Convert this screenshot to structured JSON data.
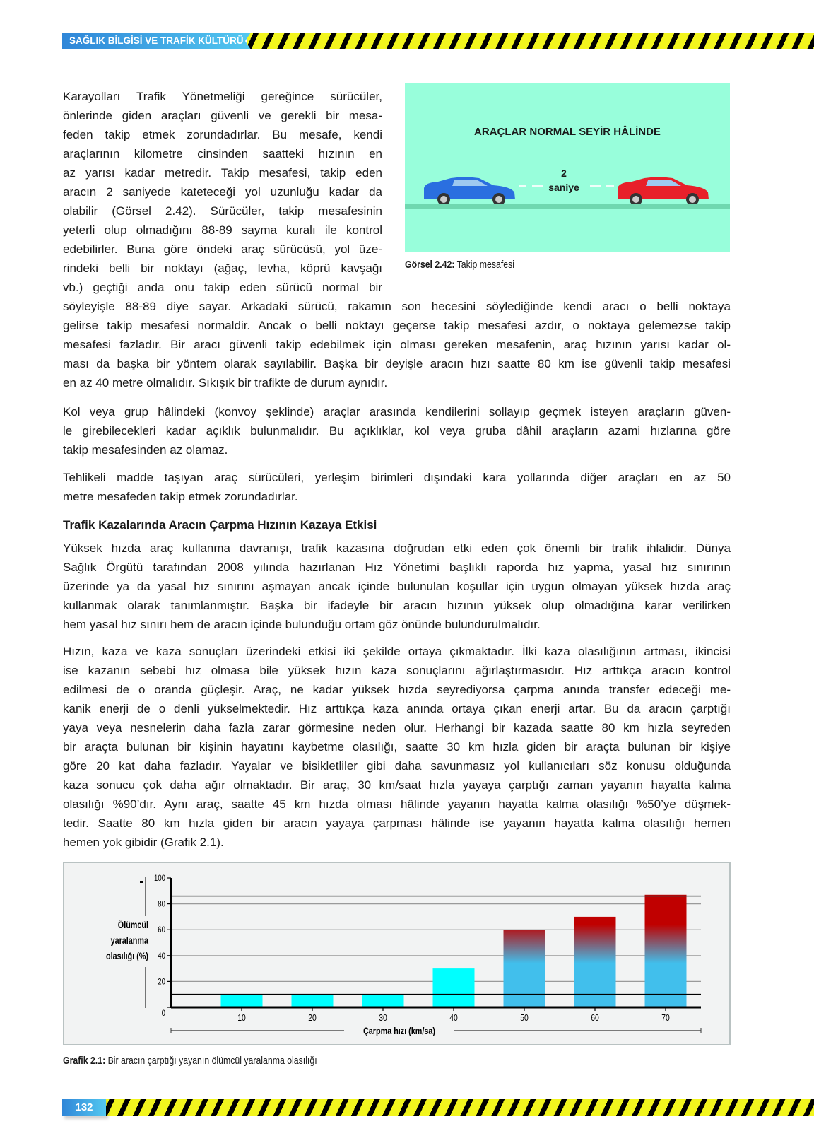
{
  "header": {
    "title": "SAĞLIK BİLGİSİ VE TRAFİK KÜLTÜRÜ"
  },
  "figure": {
    "title": "ARAÇLAR NORMAL SEYİR HÂLİNDE",
    "gap_number": "2",
    "gap_unit": "saniye",
    "caption_label": "Görsel 2.42:",
    "caption_text": " Takip mesafesi",
    "colors": {
      "background": "#98fedb",
      "rear_car": "#2a6fe0",
      "front_car": "#e8202a"
    }
  },
  "paragraphs": [
    {
      "lines": [
        "Karayolları Trafik Yönetmeliği gereğince sürücüler,",
        "önlerinde giden araçları güvenli ve gerekli bir mesa-",
        "feden takip etmek zorundadırlar. Bu mesafe, kendi",
        "araçlarının kilometre cinsinden saatteki hızının en",
        "az yarısı kadar metredir. Takip mesafesi, takip eden",
        "aracın 2 saniyede kateteceği yol uzunluğu kadar da",
        "olabilir (Görsel 2.42). Sürücüler, takip mesafesinin",
        "yeterli olup olmadığını 88-89 sayma kuralı ile kontrol",
        "edebilirler. Buna göre öndeki araç sürücüsü, yol üze-",
        "rindeki belli bir noktayı (ağaç, levha, köprü kavşağı",
        "vb.) geçtiği anda onu takip eden sürücü normal bir",
        "söyleyişle 88-89 diye sayar. Arkadaki sürücü, rakamın son hecesini söylediğinde kendi aracı o belli noktaya",
        "gelirse takip mesafesi normaldir. Ancak o belli noktayı geçerse takip mesafesi azdır, o noktaya gelemezse takip",
        "mesafesi fazladır. Bir aracı güvenli takip edebilmek için olması gereken mesafenin, araç hızının yarısı kadar ol-",
        "ması da başka bir yöntem olarak sayılabilir. Başka bir deyişle aracın hızı saatte 80 km ise güvenli takip mesafesi",
        "en az 40 metre olmalıdır. Sıkışık bir trafikte de durum aynıdır."
      ]
    },
    {
      "lines": [
        "Kol veya grup hâlindeki (konvoy şeklinde) araçlar arasında kendilerini sollayıp geçmek isteyen araçların güven-",
        "le girebilecekleri kadar açıklık bulunmalıdır. Bu açıklıklar, kol veya gruba dâhil araçların azami hızlarına göre",
        "takip mesafesinden az olamaz."
      ]
    },
    {
      "lines": [
        "Tehlikeli madde taşıyan araç sürücüleri, yerleşim birimleri dışındaki kara yollarında diğer araçları en az 50",
        "metre mesafeden takip etmek zorundadırlar."
      ]
    },
    {
      "lines": [
        "Yüksek hızda araç kullanma davranışı, trafik kazasına doğrudan etki eden çok önemli bir trafik ihlalidir. Dünya",
        "Sağlık Örgütü tarafından 2008 yılında hazırlanan Hız Yönetimi başlıklı raporda hız yapma, yasal hız sınırının",
        "üzerinde ya da yasal hız sınırını aşmayan ancak içinde bulunulan koşullar için uygun olmayan yüksek hızda araç",
        "kullanmak olarak tanımlanmıştır. Başka bir ifadeyle bir aracın hızının yüksek olup olmadığına karar verilirken",
        "hem yasal hız sınırı hem de aracın içinde bulunduğu ortam göz önünde bulundurulmalıdır."
      ]
    },
    {
      "lines": [
        "Hızın, kaza ve kaza sonuçları üzerindeki etkisi iki şekilde ortaya çıkmaktadır. İlki kaza olasılığının artması, ikincisi",
        "ise kazanın sebebi hız olmasa bile yüksek hızın kaza sonuçlarını ağırlaştırmasıdır. Hız arttıkça aracın kontrol",
        "edilmesi de o oranda güçleşir. Araç, ne kadar yüksek hızda seyrediyorsa çarpma anında transfer edeceği me-",
        "kanik enerji de o denli yükselmektedir. Hız arttıkça kaza anında ortaya çıkan enerji artar. Bu da aracın çarptığı",
        "yaya veya nesnelerin daha fazla zarar görmesine neden olur. Herhangi bir kazada saatte 80 km hızla seyreden",
        "bir araçta bulunan bir kişinin hayatını kaybetme olasılığı, saatte 30 km hızla giden bir araçta bulunan bir kişiye",
        "göre 20 kat daha fazladır. Yayalar ve bisikletliler gibi daha savunmasız yol kullanıcıları söz konusu olduğunda",
        "kaza sonucu çok daha ağır olmaktadır. Bir araç, 30 km/saat hızla yayaya çarptığı zaman yayanın hayatta kalma",
        "olasılığı %90’dır. Aynı araç, saatte 45 km hızda olması hâlinde yayanın hayatta kalma olasılığı %50’ye düşmek-",
        "tedir. Saatte 80 km hızla giden bir aracın yayaya çarpması hâlinde ise yayanın hayatta kalma olasılığı hemen",
        "hemen yok gibidir (Grafik 2.1)."
      ]
    }
  ],
  "section_heading": "Trafik Kazalarında Aracın Çarpma Hızının Kazaya Etkisi",
  "chart_data": {
    "type": "bar",
    "categories": [
      "10",
      "20",
      "30",
      "40",
      "50",
      "60",
      "70"
    ],
    "x": [
      10,
      20,
      30,
      40,
      50,
      60,
      70
    ],
    "values": [
      10,
      10,
      10,
      30,
      60,
      70,
      87
    ],
    "xlabel": "Çarpma hızı (km/sa)",
    "ylabel_lines": [
      "Ölümcül",
      "yaralanma",
      "olasılığı (%)"
    ],
    "yticks": [
      0,
      20,
      40,
      60,
      80,
      100
    ],
    "xlim": [
      0,
      75
    ],
    "ylim": [
      0,
      100
    ],
    "reference_lines": [
      10,
      86
    ],
    "grid": true,
    "colors": {
      "low": "#00ffff",
      "high_top": "#c00000",
      "high_bottom": "#41bfec",
      "background": "#f2f3f3"
    }
  },
  "chart_caption": {
    "label": "Grafik 2.1:",
    "text": " Bir aracın çarptığı yayanın ölümcül yaralanma olasılığı"
  },
  "page_number": "132"
}
